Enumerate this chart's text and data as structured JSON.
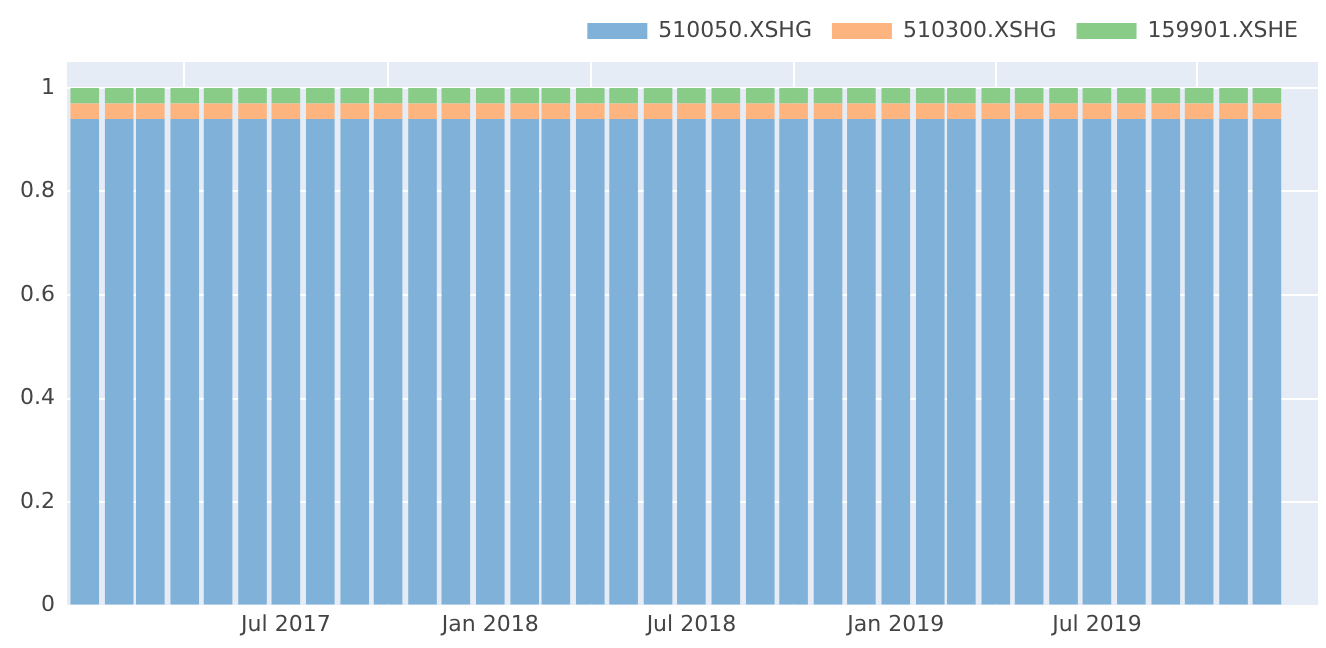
{
  "chart_data": {
    "type": "bar",
    "stacked": true,
    "x": [
      "2017-01",
      "2017-02",
      "2017-03",
      "2017-04",
      "2017-05",
      "2017-06",
      "2017-07",
      "2017-08",
      "2017-09",
      "2017-10",
      "2017-11",
      "2017-12",
      "2018-01",
      "2018-02",
      "2018-03",
      "2018-04",
      "2018-05",
      "2018-06",
      "2018-07",
      "2018-08",
      "2018-09",
      "2018-10",
      "2018-11",
      "2018-12",
      "2019-01",
      "2019-02",
      "2019-03",
      "2019-04",
      "2019-05",
      "2019-06",
      "2019-07",
      "2019-08",
      "2019-09",
      "2019-10",
      "2019-11",
      "2019-12"
    ],
    "series": [
      {
        "name": "510050.XSHG",
        "color": "#80b1d8",
        "values": [
          0.94,
          0.94,
          0.94,
          0.94,
          0.94,
          0.94,
          0.94,
          0.94,
          0.94,
          0.94,
          0.94,
          0.94,
          0.94,
          0.94,
          0.94,
          0.94,
          0.94,
          0.94,
          0.94,
          0.94,
          0.94,
          0.94,
          0.94,
          0.94,
          0.94,
          0.94,
          0.94,
          0.94,
          0.94,
          0.94,
          0.94,
          0.94,
          0.94,
          0.94,
          0.94,
          0.94
        ]
      },
      {
        "name": "510300.XSHG",
        "color": "#fdb47e",
        "values": [
          0.03,
          0.03,
          0.03,
          0.03,
          0.03,
          0.03,
          0.03,
          0.03,
          0.03,
          0.03,
          0.03,
          0.03,
          0.03,
          0.03,
          0.03,
          0.03,
          0.03,
          0.03,
          0.03,
          0.03,
          0.03,
          0.03,
          0.03,
          0.03,
          0.03,
          0.03,
          0.03,
          0.03,
          0.03,
          0.03,
          0.03,
          0.03,
          0.03,
          0.03,
          0.03,
          0.03
        ]
      },
      {
        "name": "159901.XSHE",
        "color": "#88cc88",
        "values": [
          0.03,
          0.03,
          0.03,
          0.03,
          0.03,
          0.03,
          0.03,
          0.03,
          0.03,
          0.03,
          0.03,
          0.03,
          0.03,
          0.03,
          0.03,
          0.03,
          0.03,
          0.03,
          0.03,
          0.03,
          0.03,
          0.03,
          0.03,
          0.03,
          0.03,
          0.03,
          0.03,
          0.03,
          0.03,
          0.03,
          0.03,
          0.03,
          0.03,
          0.03,
          0.03,
          0.03
        ]
      }
    ],
    "xlim": [
      "2016-12-16",
      "2020-01-16"
    ],
    "xticks": [
      {
        "value": "2017-07-01",
        "label": "Jul 2017"
      },
      {
        "value": "2018-01-01",
        "label": "Jan 2018"
      },
      {
        "value": "2018-07-01",
        "label": "Jul 2018"
      },
      {
        "value": "2019-01-01",
        "label": "Jan 2019"
      },
      {
        "value": "2019-07-01",
        "label": "Jul 2019"
      }
    ],
    "ylim": [
      0,
      1.05
    ],
    "yticks": [
      0,
      0.2,
      0.4,
      0.6,
      0.8,
      1
    ],
    "grid": true,
    "legend": "top right"
  }
}
